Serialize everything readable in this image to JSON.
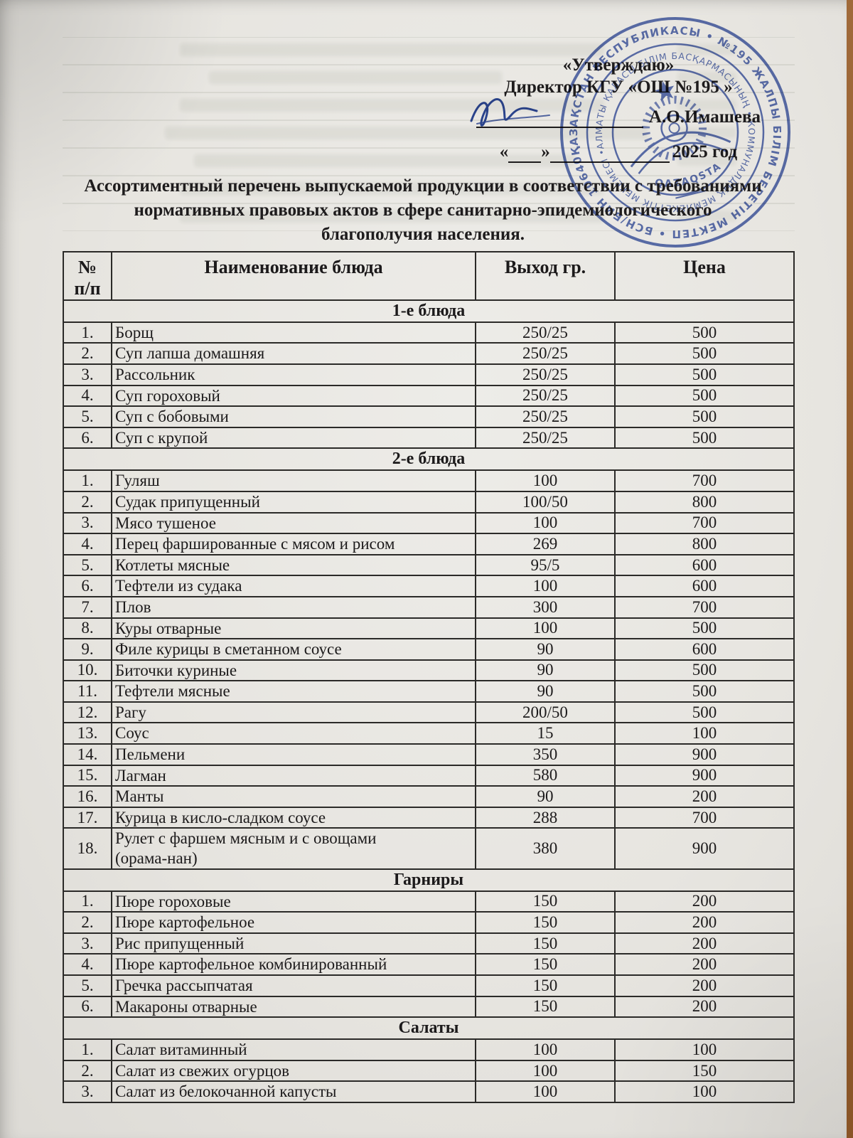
{
  "approval": {
    "approve_label": "«Утверждаю»",
    "director_line": "Директор КГУ «ОШ №195 »",
    "signatory": "А.О.Имашева",
    "quote_open": "«",
    "quote_close": "»",
    "year_label": "2025 год"
  },
  "stamp": {
    "outer_ring": "ҚАЗАҚСТАН РЕСПУБЛИКАСЫ • №195 ЖАЛПЫ БІЛІМ БЕРЕТІН МЕКТЕП • БСН/БИН 106400226006 •",
    "inner_ring": "АЛМАТЫ ҚАЛАСЫ БІЛІМ БАСҚАРМАСЫНЫҢ • КОММУНАЛДЫҚ МЕМЛЕКЕТТІК МЕКЕМЕСІ • 640000000064",
    "center_label": "QAZAQSTAN",
    "color": "#3c55a8"
  },
  "title": {
    "lines": [
      "Ассортиментный перечень выпускаемой продукции в соответствии с требованиями",
      "нормативных правовых актов в сфере санитарно-эпидемиологического",
      "благополучия населения."
    ]
  },
  "table": {
    "col_headers": {
      "num": "№\nп/п",
      "name": "Наименование блюда",
      "yield": "Выход гр.",
      "price": "Цена"
    },
    "sections": [
      {
        "header": "1-е блюда",
        "rows": [
          {
            "n": "1.",
            "name": "Борщ",
            "yield": "250/25",
            "price": "500"
          },
          {
            "n": "2.",
            "name": "Суп лапша домашняя",
            "yield": "250/25",
            "price": "500"
          },
          {
            "n": "3.",
            "name": "Рассольник",
            "yield": "250/25",
            "price": "500"
          },
          {
            "n": "4.",
            "name": "Суп гороховый",
            "yield": "250/25",
            "price": "500"
          },
          {
            "n": "5.",
            "name": "Суп с бобовыми",
            "yield": "250/25",
            "price": "500"
          },
          {
            "n": "6.",
            "name": "Суп с крупой",
            "yield": "250/25",
            "price": "500"
          }
        ]
      },
      {
        "header": "2-е блюда",
        "rows": [
          {
            "n": "1.",
            "name": "Гуляш",
            "yield": "100",
            "price": "700"
          },
          {
            "n": "2.",
            "name": "Судак припущенный",
            "yield": "100/50",
            "price": "800"
          },
          {
            "n": "3.",
            "name": "Мясо тушеное",
            "yield": "100",
            "price": "700"
          },
          {
            "n": "4.",
            "name": "Перец фаршированные с мясом и рисом",
            "yield": "269",
            "price": "800"
          },
          {
            "n": "5.",
            "name": "Котлеты мясные",
            "yield": "95/5",
            "price": "600"
          },
          {
            "n": "6.",
            "name": "Тефтели из судака",
            "yield": "100",
            "price": "600"
          },
          {
            "n": "7.",
            "name": "Плов",
            "yield": "300",
            "price": "700"
          },
          {
            "n": "8.",
            "name": "Куры отварные",
            "yield": "100",
            "price": "500"
          },
          {
            "n": "9.",
            "name": "Филе курицы в сметанном соусе",
            "yield": "90",
            "price": "600"
          },
          {
            "n": "10.",
            "name": "Биточки куриные",
            "yield": "90",
            "price": "500"
          },
          {
            "n": "11.",
            "name": "Тефтели мясные",
            "yield": "90",
            "price": "500"
          },
          {
            "n": "12.",
            "name": "Рагу",
            "yield": "200/50",
            "price": "500"
          },
          {
            "n": "13.",
            "name": "Соус",
            "yield": "15",
            "price": "100"
          },
          {
            "n": "14.",
            "name": "Пельмени",
            "yield": "350",
            "price": "900"
          },
          {
            "n": "15.",
            "name": "Лагман",
            "yield": "580",
            "price": "900"
          },
          {
            "n": "16.",
            "name": "Манты",
            "yield": "90",
            "price": "200"
          },
          {
            "n": "17.",
            "name": "Курица в кисло-сладком соусе",
            "yield": "288",
            "price": "700"
          },
          {
            "n": "18.",
            "name": "Рулет с фаршем мясным и с овощами\n(орама-нан)",
            "yield": "380",
            "price": "900"
          }
        ]
      },
      {
        "header": "Гарниры",
        "rows": [
          {
            "n": "1.",
            "name": "Пюре гороховые",
            "yield": "150",
            "price": "200"
          },
          {
            "n": "2.",
            "name": "Пюре картофельное",
            "yield": "150",
            "price": "200"
          },
          {
            "n": "3.",
            "name": "Рис припущенный",
            "yield": "150",
            "price": "200"
          },
          {
            "n": "4.",
            "name": "Пюре картофельное комбинированный",
            "yield": "150",
            "price": "200"
          },
          {
            "n": "5.",
            "name": "Гречка рассыпчатая",
            "yield": "150",
            "price": "200"
          },
          {
            "n": "6.",
            "name": "Макароны отварные",
            "yield": "150",
            "price": "200"
          }
        ]
      },
      {
        "header": "Салаты",
        "rows": [
          {
            "n": "1.",
            "name": "Салат витаминный",
            "yield": "100",
            "price": "100"
          },
          {
            "n": "2.",
            "name": "Салат из свежих огурцов",
            "yield": "100",
            "price": "150"
          },
          {
            "n": "3.",
            "name": "Салат из белокочанной капусты",
            "yield": "100",
            "price": "100"
          }
        ]
      }
    ]
  }
}
